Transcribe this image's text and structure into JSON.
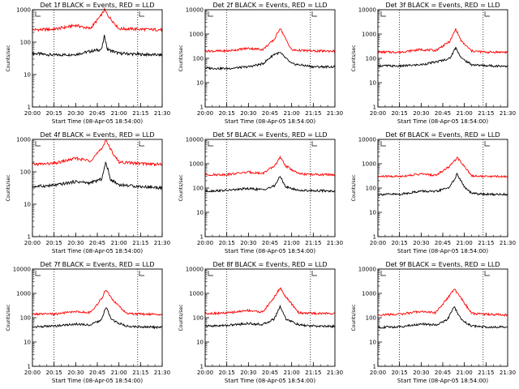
{
  "chart_data": [
    {
      "type": "line",
      "title": "Det 1f BLACK = Events, RED = LLD",
      "xlabel": "Start Time (08-Apr-05 18:54:00)",
      "ylabel": "Counts/sec",
      "yscale": "log",
      "ylim": [
        1,
        1000
      ],
      "yticks": [
        "1",
        "10",
        "100",
        "1000"
      ],
      "xlim": [
        "20:00",
        "21:30"
      ],
      "xticks": [
        "20:00",
        "20:15",
        "20:30",
        "20:45",
        "21:00",
        "21:15",
        "21:30"
      ],
      "vlines": [
        "20:15",
        "21:13"
      ],
      "series": [
        {
          "color": "#000000",
          "x": [
            "20:00",
            "20:15",
            "20:30",
            "20:40",
            "20:48",
            "20:50",
            "20:52",
            "21:00",
            "21:15",
            "21:30"
          ],
          "y": [
            45,
            40,
            42,
            52,
            60,
            160,
            60,
            45,
            42,
            40
          ]
        },
        {
          "color": "#ff0000",
          "x": [
            "20:00",
            "20:15",
            "20:30",
            "20:40",
            "20:48",
            "20:50",
            "20:52",
            "21:00",
            "21:15",
            "21:30"
          ],
          "y": [
            240,
            250,
            330,
            260,
            700,
            1000,
            700,
            260,
            250,
            240
          ]
        }
      ]
    },
    {
      "type": "line",
      "title": "Det 2f BLACK = Events, RED = LLD",
      "xlabel": "Start Time (08-Apr-05 18:54:00)",
      "ylabel": "Counts/sec",
      "yscale": "log",
      "ylim": [
        1,
        10000
      ],
      "yticks": [
        "1",
        "10",
        "100",
        "1000",
        "10000"
      ],
      "xlim": [
        "20:00",
        "21:30"
      ],
      "xticks": [
        "20:00",
        "20:15",
        "20:30",
        "20:45",
        "21:00",
        "21:15",
        "21:30"
      ],
      "vlines": [
        "20:15",
        "21:13"
      ],
      "series": [
        {
          "color": "#000000",
          "x": [
            "20:00",
            "20:15",
            "20:30",
            "20:40",
            "20:48",
            "20:52",
            "20:56",
            "21:00",
            "21:15",
            "21:30"
          ],
          "y": [
            40,
            38,
            45,
            60,
            150,
            170,
            100,
            60,
            45,
            45
          ]
        },
        {
          "color": "#ff0000",
          "x": [
            "20:00",
            "20:15",
            "20:30",
            "20:40",
            "20:48",
            "20:52",
            "20:56",
            "21:00",
            "21:15",
            "21:30"
          ],
          "y": [
            200,
            200,
            260,
            230,
            600,
            1800,
            600,
            220,
            200,
            200
          ]
        }
      ]
    },
    {
      "type": "line",
      "title": "Det 3f BLACK = Events, RED = LLD",
      "xlabel": "Start Time (08-Apr-05 18:54:00)",
      "ylabel": "Counts/sec",
      "yscale": "log",
      "ylim": [
        1,
        10000
      ],
      "yticks": [
        "1",
        "10",
        "100",
        "1000",
        "10000"
      ],
      "xlim": [
        "20:00",
        "21:30"
      ],
      "xticks": [
        "20:00",
        "20:15",
        "20:30",
        "20:45",
        "21:00",
        "21:15",
        "21:30"
      ],
      "vlines": [
        "20:15",
        "21:13"
      ],
      "series": [
        {
          "color": "#000000",
          "x": [
            "20:00",
            "20:15",
            "20:30",
            "20:40",
            "20:50",
            "20:54",
            "20:58",
            "21:05",
            "21:15",
            "21:30"
          ],
          "y": [
            50,
            48,
            55,
            70,
            100,
            280,
            100,
            55,
            50,
            48
          ]
        },
        {
          "color": "#ff0000",
          "x": [
            "20:00",
            "20:15",
            "20:30",
            "20:40",
            "20:50",
            "20:54",
            "20:58",
            "21:05",
            "21:15",
            "21:30"
          ],
          "y": [
            180,
            180,
            230,
            210,
            500,
            1600,
            500,
            200,
            180,
            180
          ]
        }
      ]
    },
    {
      "type": "line",
      "title": "Det 4f BLACK = Events, RED = LLD",
      "xlabel": "Start Time (08-Apr-05 18:54:00)",
      "ylabel": "Counts/sec",
      "yscale": "log",
      "ylim": [
        1,
        1000
      ],
      "yticks": [
        "1",
        "10",
        "100",
        "1000"
      ],
      "xlim": [
        "20:00",
        "21:30"
      ],
      "xticks": [
        "20:00",
        "20:15",
        "20:30",
        "20:45",
        "21:00",
        "21:15",
        "21:30"
      ],
      "vlines": [
        "20:15",
        "21:13"
      ],
      "series": [
        {
          "color": "#000000",
          "x": [
            "20:00",
            "20:15",
            "20:30",
            "20:40",
            "20:48",
            "20:51",
            "20:54",
            "21:00",
            "21:15",
            "21:30"
          ],
          "y": [
            35,
            38,
            50,
            45,
            60,
            200,
            60,
            40,
            35,
            32
          ]
        },
        {
          "color": "#ff0000",
          "x": [
            "20:00",
            "20:15",
            "20:30",
            "20:40",
            "20:48",
            "20:51",
            "20:54",
            "21:00",
            "21:15",
            "21:30"
          ],
          "y": [
            170,
            180,
            260,
            220,
            500,
            1000,
            500,
            200,
            180,
            170
          ]
        }
      ]
    },
    {
      "type": "line",
      "title": "Det 5f BLACK = Events, RED = LLD",
      "xlabel": "Start Time (08-Apr-05 18:54:00)",
      "ylabel": "Counts/sec",
      "yscale": "log",
      "ylim": [
        1,
        10000
      ],
      "yticks": [
        "1",
        "10",
        "100",
        "1000",
        "10000"
      ],
      "xlim": [
        "20:00",
        "21:30"
      ],
      "xticks": [
        "20:00",
        "20:15",
        "20:30",
        "20:45",
        "21:00",
        "21:15",
        "21:30"
      ],
      "vlines": [
        "20:15",
        "21:13"
      ],
      "series": [
        {
          "color": "#000000",
          "x": [
            "20:00",
            "20:15",
            "20:30",
            "20:40",
            "20:48",
            "20:52",
            "20:56",
            "21:05",
            "21:15",
            "21:30"
          ],
          "y": [
            75,
            80,
            95,
            85,
            120,
            300,
            110,
            80,
            78,
            75
          ]
        },
        {
          "color": "#ff0000",
          "x": [
            "20:00",
            "20:15",
            "20:30",
            "20:40",
            "20:48",
            "20:52",
            "20:56",
            "21:05",
            "21:15",
            "21:30"
          ],
          "y": [
            350,
            360,
            450,
            400,
            800,
            1800,
            800,
            380,
            360,
            350
          ]
        }
      ]
    },
    {
      "type": "line",
      "title": "Det 6f BLACK = Events, RED = LLD",
      "xlabel": "Start Time (08-Apr-05 18:54:00)",
      "ylabel": "Counts/sec",
      "yscale": "log",
      "ylim": [
        1,
        10000
      ],
      "yticks": [
        "1",
        "10",
        "100",
        "1000",
        "10000"
      ],
      "xlim": [
        "20:00",
        "21:30"
      ],
      "xticks": [
        "20:00",
        "20:15",
        "20:30",
        "20:45",
        "21:00",
        "21:15",
        "21:30"
      ],
      "vlines": [
        "20:15",
        "21:13"
      ],
      "series": [
        {
          "color": "#000000",
          "x": [
            "20:00",
            "20:15",
            "20:30",
            "20:40",
            "20:50",
            "20:55",
            "21:00",
            "21:05",
            "21:15",
            "21:30"
          ],
          "y": [
            55,
            55,
            75,
            70,
            110,
            380,
            110,
            60,
            55,
            55
          ]
        },
        {
          "color": "#ff0000",
          "x": [
            "20:00",
            "20:15",
            "20:30",
            "20:40",
            "20:50",
            "20:55",
            "21:00",
            "21:05",
            "21:15",
            "21:30"
          ],
          "y": [
            300,
            300,
            380,
            330,
            800,
            1800,
            800,
            320,
            300,
            300
          ]
        }
      ]
    },
    {
      "type": "line",
      "title": "Det 7f BLACK = Events, RED = LLD",
      "xlabel": "Start Time (08-Apr-05 18:54:00)",
      "ylabel": "Counts/sec",
      "yscale": "log",
      "ylim": [
        1,
        10000
      ],
      "yticks": [
        "1",
        "10",
        "100",
        "1000",
        "10000"
      ],
      "xlim": [
        "20:00",
        "21:30"
      ],
      "xticks": [
        "20:00",
        "20:15",
        "20:30",
        "20:45",
        "21:00",
        "21:15",
        "21:30"
      ],
      "vlines": [
        "20:15",
        "21:13"
      ],
      "series": [
        {
          "color": "#000000",
          "x": [
            "20:00",
            "20:15",
            "20:30",
            "20:40",
            "20:48",
            "20:51",
            "20:55",
            "21:05",
            "21:15",
            "21:30"
          ],
          "y": [
            42,
            45,
            55,
            50,
            80,
            280,
            80,
            45,
            42,
            40
          ]
        },
        {
          "color": "#ff0000",
          "x": [
            "20:00",
            "20:15",
            "20:30",
            "20:40",
            "20:48",
            "20:51",
            "20:55",
            "21:05",
            "21:15",
            "21:30"
          ],
          "y": [
            140,
            140,
            180,
            160,
            600,
            1500,
            600,
            150,
            140,
            140
          ]
        }
      ]
    },
    {
      "type": "line",
      "title": "Det 8f BLACK = Events, RED = LLD",
      "xlabel": "Start Time (08-Apr-05 18:54:00)",
      "ylabel": "Counts/sec",
      "yscale": "log",
      "ylim": [
        1,
        10000
      ],
      "yticks": [
        "1",
        "10",
        "100",
        "1000",
        "10000"
      ],
      "xlim": [
        "20:00",
        "21:30"
      ],
      "xticks": [
        "20:00",
        "20:15",
        "20:30",
        "20:45",
        "21:00",
        "21:15",
        "21:30"
      ],
      "vlines": [
        "20:15",
        "21:13"
      ],
      "series": [
        {
          "color": "#000000",
          "x": [
            "20:00",
            "20:15",
            "20:30",
            "20:40",
            "20:48",
            "20:52",
            "20:56",
            "21:05",
            "21:15",
            "21:30"
          ],
          "y": [
            45,
            48,
            58,
            52,
            90,
            300,
            90,
            50,
            45,
            44
          ]
        },
        {
          "color": "#ff0000",
          "x": [
            "20:00",
            "20:15",
            "20:30",
            "20:40",
            "20:48",
            "20:52",
            "20:56",
            "21:05",
            "21:15",
            "21:30"
          ],
          "y": [
            150,
            155,
            200,
            170,
            700,
            1700,
            700,
            160,
            150,
            150
          ]
        }
      ]
    },
    {
      "type": "line",
      "title": "Det 9f BLACK = Events, RED = LLD",
      "xlabel": "Start Time (08-Apr-05 18:54:00)",
      "ylabel": "Counts/sec",
      "yscale": "log",
      "ylim": [
        1,
        10000
      ],
      "yticks": [
        "1",
        "10",
        "100",
        "1000",
        "10000"
      ],
      "xlim": [
        "20:00",
        "21:30"
      ],
      "xticks": [
        "20:00",
        "20:15",
        "20:30",
        "20:45",
        "21:00",
        "21:15",
        "21:30"
      ],
      "vlines": [
        "20:15",
        "21:13"
      ],
      "series": [
        {
          "color": "#000000",
          "x": [
            "20:00",
            "20:15",
            "20:30",
            "20:40",
            "20:48",
            "20:53",
            "20:58",
            "21:05",
            "21:15",
            "21:30"
          ],
          "y": [
            40,
            42,
            55,
            50,
            80,
            280,
            80,
            45,
            42,
            40
          ]
        },
        {
          "color": "#ff0000",
          "x": [
            "20:00",
            "20:15",
            "20:30",
            "20:40",
            "20:48",
            "20:53",
            "20:58",
            "21:05",
            "21:15",
            "21:30"
          ],
          "y": [
            130,
            140,
            180,
            160,
            600,
            1500,
            600,
            150,
            140,
            130
          ]
        }
      ]
    }
  ]
}
